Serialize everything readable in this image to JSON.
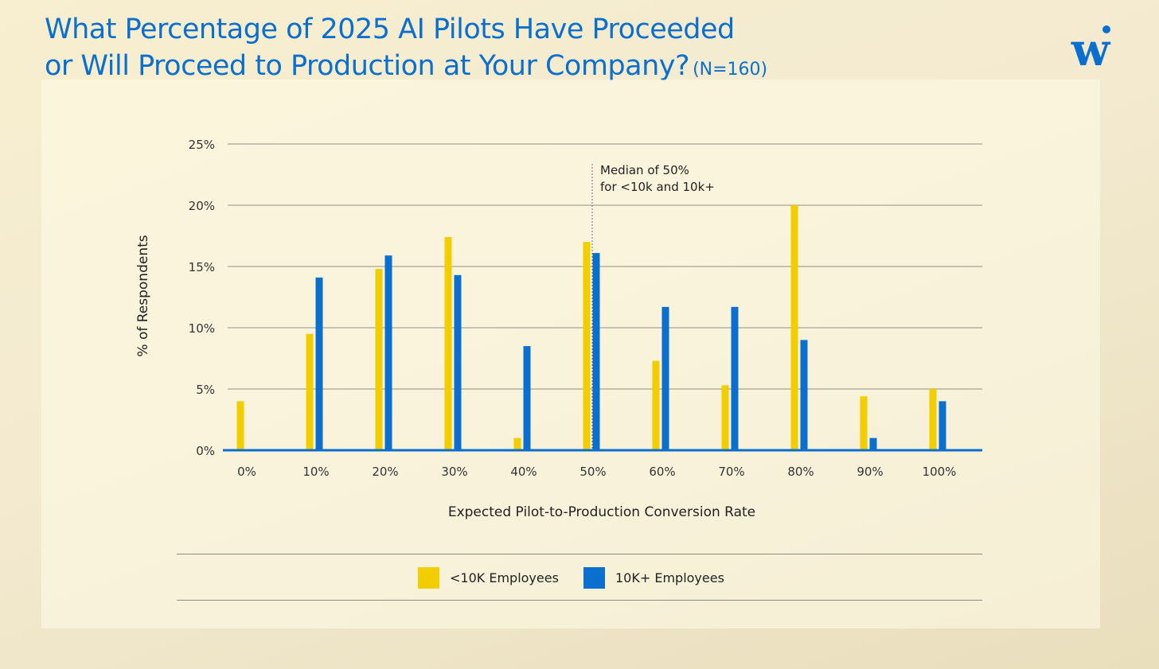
{
  "header": {
    "title_line1": "What Percentage of 2025 AI Pilots Have Proceeded",
    "title_line2": "or Will Proceed to Production at Your Company?",
    "sample_size": "(N=160)"
  },
  "logo": {
    "letter": "w",
    "icon": "brand-w-logo-icon"
  },
  "colors": {
    "small": "#f2cd00",
    "large": "#0b6fcf",
    "title": "#0b6fcf",
    "grid": "#8f8f86"
  },
  "chart_data": {
    "type": "bar",
    "title": "What Percentage of 2025 AI Pilots Have Proceeded or Will Proceed to Production at Your Company? (N=160)",
    "xlabel": "Expected Pilot-to-Production Conversion Rate",
    "ylabel": "% of Respondents",
    "categories": [
      "0%",
      "10%",
      "20%",
      "30%",
      "40%",
      "50%",
      "60%",
      "70%",
      "80%",
      "90%",
      "100%"
    ],
    "ylim": [
      0,
      25
    ],
    "yticks": [
      0,
      5,
      10,
      15,
      20,
      25
    ],
    "ytick_labels": [
      "0%",
      "5%",
      "10%",
      "15%",
      "20%",
      "25%"
    ],
    "series": [
      {
        "name": "<10K Employees",
        "values": [
          4.0,
          9.5,
          14.8,
          17.4,
          1.0,
          17.0,
          7.3,
          5.3,
          20.0,
          4.4,
          5.0
        ]
      },
      {
        "name": "10K+ Employees",
        "values": [
          0,
          14.1,
          15.9,
          14.3,
          8.5,
          16.1,
          11.7,
          11.7,
          9.0,
          1.0,
          4.0
        ]
      }
    ],
    "annotation": {
      "category": "50%",
      "line1": "Median of 50%",
      "line2": "for <10k and 10k+"
    },
    "legend_position": "bottom"
  },
  "legend": {
    "items": [
      {
        "label": "<10K Employees"
      },
      {
        "label": "10K+ Employees"
      }
    ]
  }
}
